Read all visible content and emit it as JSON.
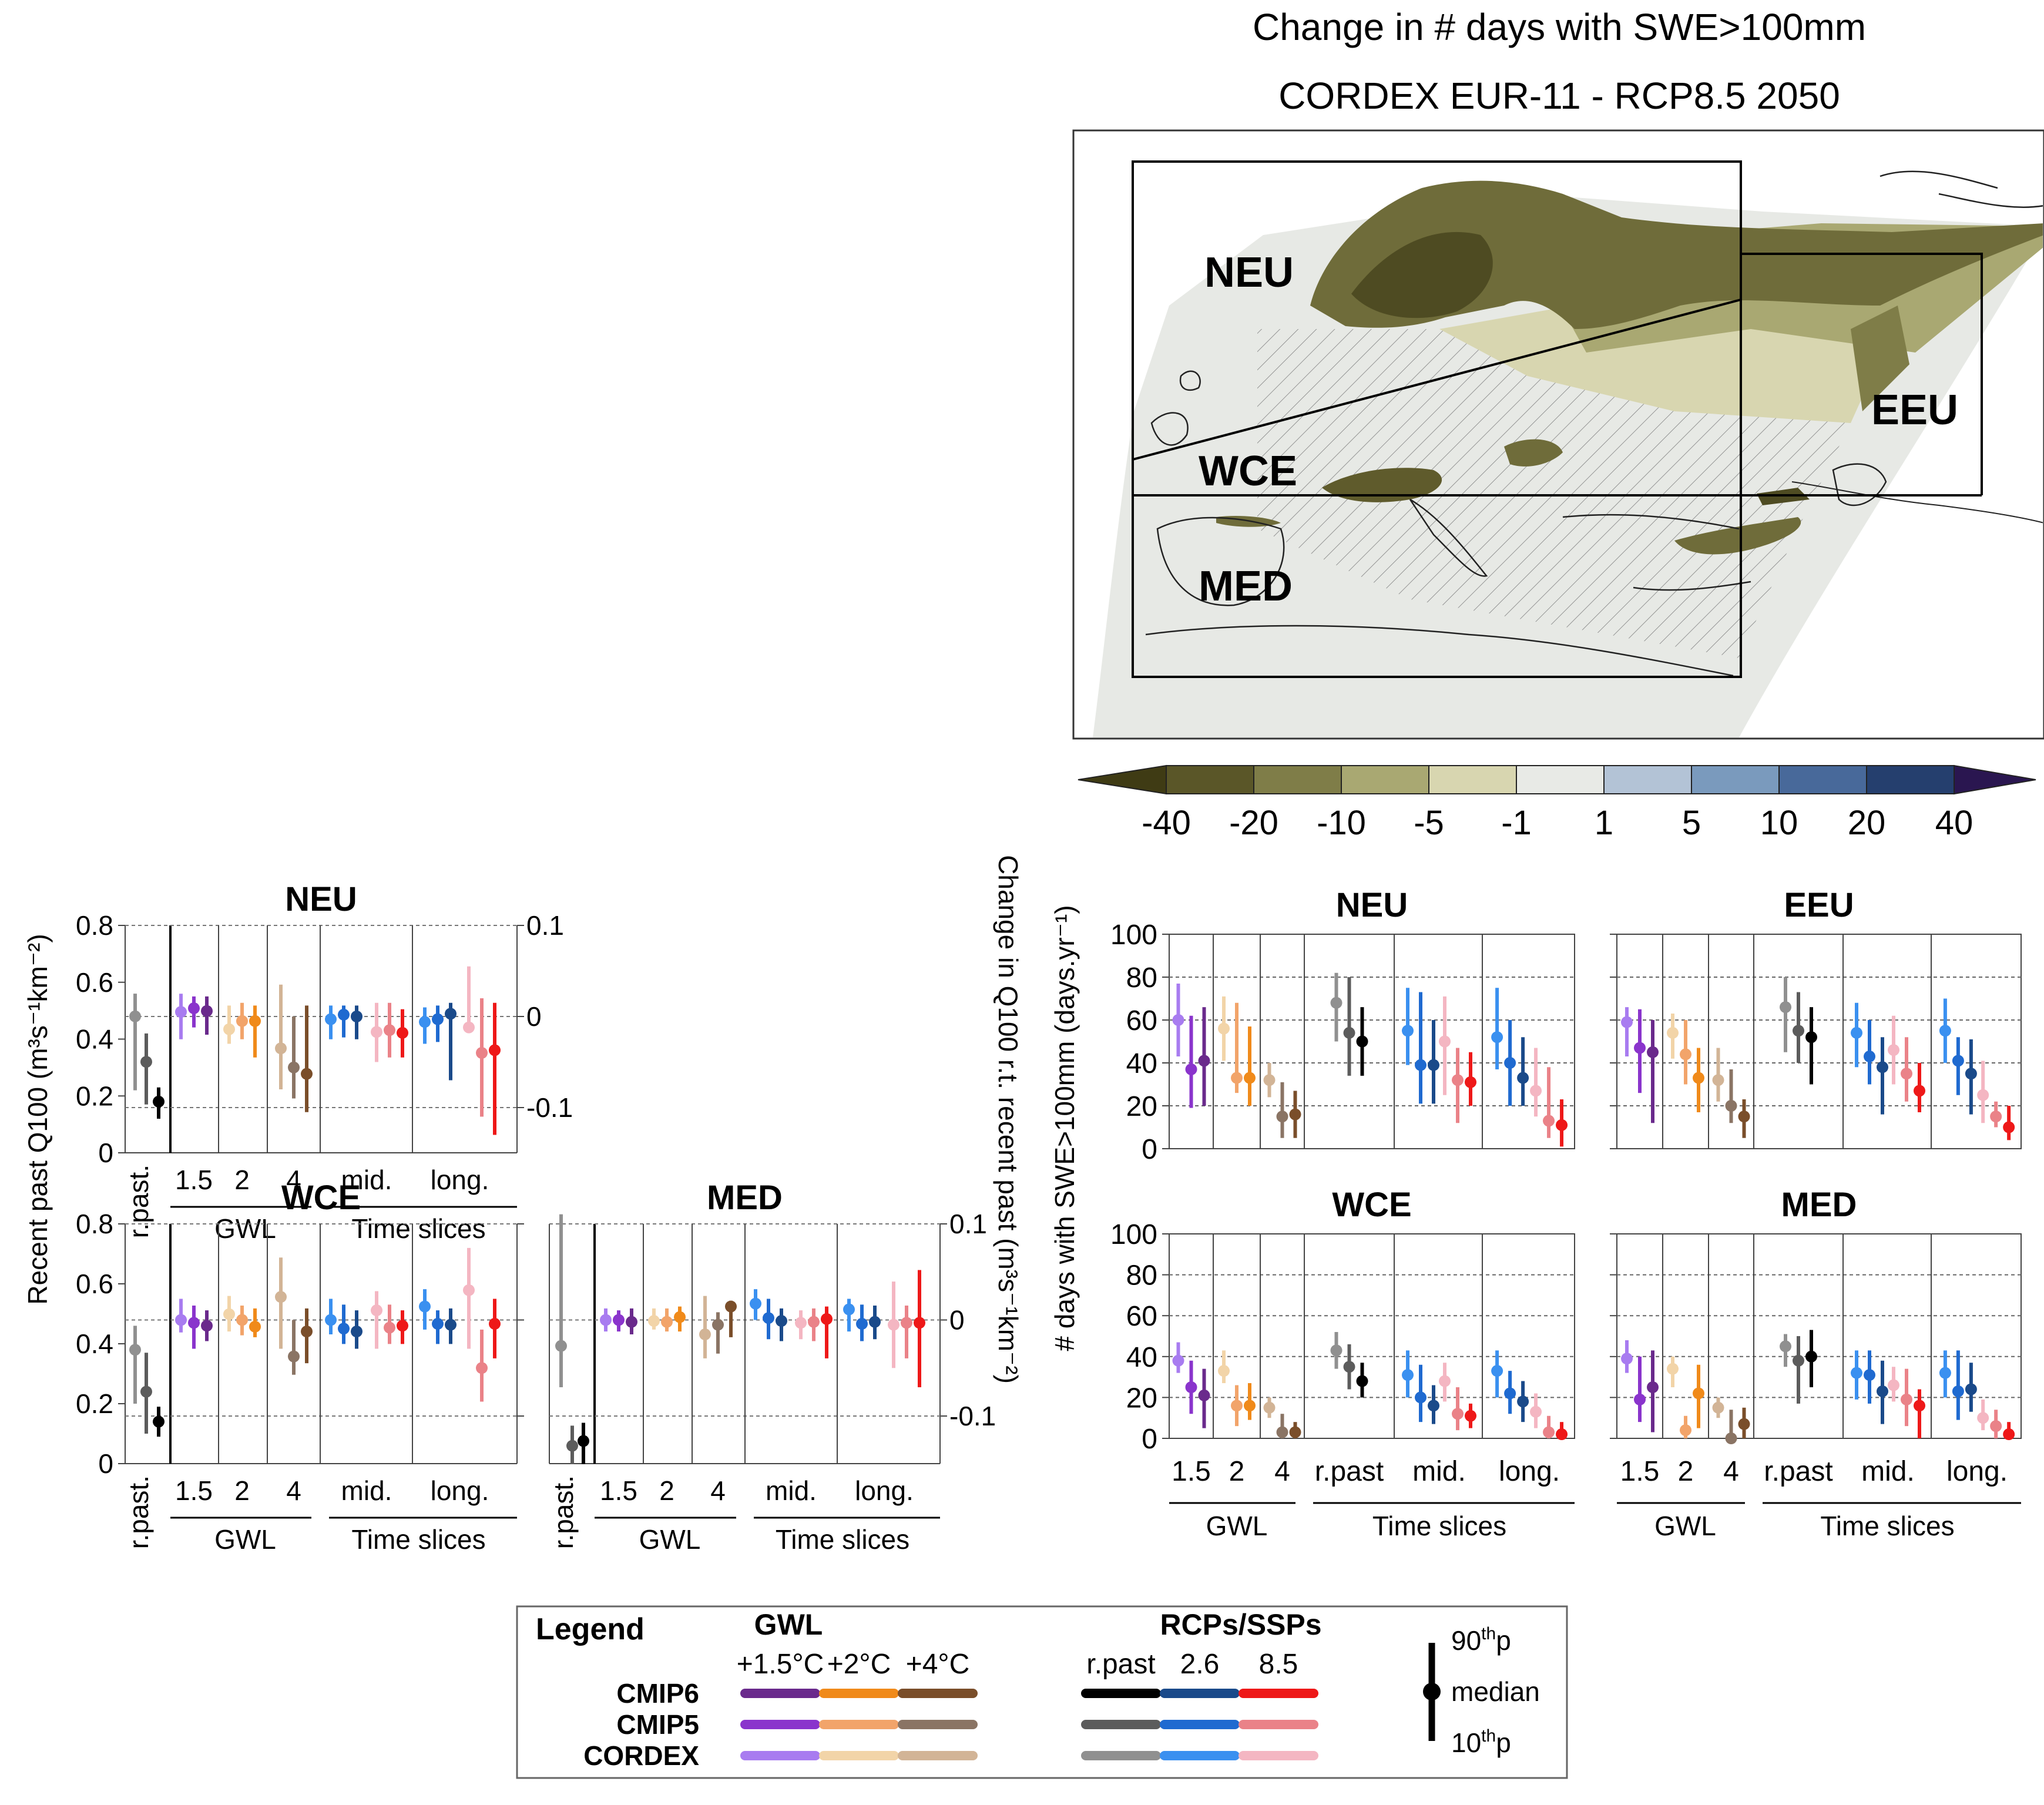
{
  "map": {
    "title_line1": "Change in # days with SWE>100mm",
    "title_line2": "CORDEX EUR-11 - RCP8.5 2050",
    "regions": [
      "NEU",
      "EEU",
      "WCE",
      "MED"
    ],
    "colorbar": {
      "ticks": [
        "-40",
        "-20",
        "-10",
        "-5",
        "-1",
        "1",
        "5",
        "10",
        "20",
        "40"
      ],
      "colors": [
        "#3f3b14",
        "#5a5628",
        "#7f7d48",
        "#a9a872",
        "#d8d6b0",
        "#e8eae6",
        "#b3c3d6",
        "#7a9abd",
        "#48699a",
        "#253f6e",
        "#141a4a",
        "#2a1650"
      ]
    }
  },
  "colors": {
    "gwl15": [
      "#a87cf0",
      "#8a34cc",
      "#6a2a8c"
    ],
    "gwl2": [
      "#f2d4a8",
      "#f2a46a",
      "#f08a1a"
    ],
    "gwl4": [
      "#d2b496",
      "#8a7464",
      "#7a4e2a"
    ],
    "rpast": [
      "#909090",
      "#5c5c5c",
      "#000000"
    ],
    "rcp26": [
      "#3a90f0",
      "#1f6ad0",
      "#1a4a8a"
    ],
    "rcp85": [
      "#f4b6c2",
      "#ea8288",
      "#ee1818"
    ]
  },
  "q100": {
    "left_axis_label": "Recent past Q100 (m³s⁻¹km⁻²)",
    "right_axis_label": "Change in Q100 r.t. recent past (m³s⁻¹km⁻²)",
    "left_ticks": [
      "0",
      "0.2",
      "0.4",
      "0.6",
      "0.8"
    ],
    "right_ticks": [
      "0.1",
      "0",
      "-0.1"
    ],
    "x_labels": {
      "rpast": "r.past.",
      "g15": "1.5",
      "g2": "2",
      "g4": "4",
      "mid": "mid.",
      "long": "long."
    },
    "group_labels": {
      "gwl": "GWL",
      "ts": "Time slices"
    }
  },
  "swe": {
    "axis_label": "# days with SWE>100mm (days.yr⁻¹)",
    "ticks": [
      "0",
      "20",
      "40",
      "60",
      "80",
      "100"
    ],
    "x_labels": {
      "g15": "1.5",
      "g2": "2",
      "g4": "4",
      "rpast": "r.past",
      "mid": "mid.",
      "long": "long."
    },
    "group_labels": {
      "gwl": "GWL",
      "ts": "Time slices"
    }
  },
  "chart_data": [
    {
      "type": "scatter",
      "title": "NEU",
      "description_of_units": "left axis: recent past Q100; right axis: change in Q100",
      "ylim": [
        0,
        0.8
      ],
      "y2lim": [
        -0.1,
        0.1
      ],
      "rpast": [
        [
          0.48,
          0.22,
          0.56
        ],
        [
          0.32,
          0.17,
          0.42
        ],
        [
          0.18,
          0.12,
          0.23
        ]
      ],
      "change": [
        [
          0.005,
          -0.025,
          0.025
        ],
        [
          0.009,
          -0.012,
          0.022
        ],
        [
          0.006,
          -0.02,
          0.022
        ],
        [
          -0.014,
          -0.03,
          0.012
        ],
        [
          -0.005,
          -0.025,
          0.015
        ],
        [
          -0.005,
          -0.045,
          0.012
        ],
        [
          -0.035,
          -0.08,
          0.035
        ],
        [
          -0.056,
          -0.09,
          0.0
        ],
        [
          -0.063,
          -0.105,
          0.012
        ],
        [
          -0.003,
          -0.025,
          0.012
        ],
        [
          0.002,
          -0.023,
          0.012
        ],
        [
          0.0,
          -0.025,
          0.012
        ],
        [
          -0.017,
          -0.05,
          0.015
        ],
        [
          -0.015,
          -0.045,
          0.015
        ],
        [
          -0.018,
          -0.045,
          0.008
        ],
        [
          -0.006,
          -0.03,
          0.01
        ],
        [
          -0.003,
          -0.028,
          0.012
        ],
        [
          0.003,
          -0.07,
          0.015
        ],
        [
          -0.012,
          -0.015,
          0.055
        ],
        [
          -0.04,
          -0.11,
          0.02
        ],
        [
          -0.037,
          -0.13,
          0.015
        ]
      ]
    },
    {
      "type": "scatter",
      "title": "WCE",
      "ylim": [
        0,
        0.8
      ],
      "y2lim": [
        -0.1,
        0.1
      ],
      "rpast": [
        [
          0.38,
          0.2,
          0.46
        ],
        [
          0.24,
          0.1,
          0.37
        ],
        [
          0.14,
          0.09,
          0.19
        ]
      ],
      "change": [
        [
          0.0,
          -0.013,
          0.022
        ],
        [
          -0.003,
          -0.03,
          0.015
        ],
        [
          -0.006,
          -0.022,
          0.01
        ],
        [
          0.006,
          -0.012,
          0.025
        ],
        [
          0.0,
          -0.016,
          0.015
        ],
        [
          -0.007,
          -0.018,
          0.012
        ],
        [
          0.024,
          -0.03,
          0.065
        ],
        [
          -0.038,
          -0.057,
          0.0
        ],
        [
          -0.012,
          -0.045,
          0.012
        ],
        [
          0.0,
          -0.015,
          0.022
        ],
        [
          -0.009,
          -0.025,
          0.016
        ],
        [
          -0.012,
          -0.03,
          0.01
        ],
        [
          0.01,
          -0.03,
          0.03
        ],
        [
          -0.008,
          -0.025,
          0.016
        ],
        [
          -0.006,
          -0.025,
          0.01
        ],
        [
          0.014,
          -0.01,
          0.032
        ],
        [
          -0.004,
          -0.025,
          0.01
        ],
        [
          -0.005,
          -0.025,
          0.012
        ],
        [
          0.031,
          -0.03,
          0.075
        ],
        [
          -0.05,
          -0.085,
          -0.01
        ],
        [
          -0.004,
          -0.04,
          0.022
        ]
      ]
    },
    {
      "type": "scatter",
      "title": "MED",
      "y2lim": [
        -0.1,
        0.1
      ],
      "rpast_change": [
        [
          -0.027,
          -0.07,
          0.11
        ],
        [
          -0.131,
          -0.15,
          -0.11
        ],
        [
          -0.126,
          -0.15,
          -0.107
        ]
      ],
      "change": [
        [
          0.0,
          -0.012,
          0.012
        ],
        [
          0.0,
          -0.012,
          0.01
        ],
        [
          -0.002,
          -0.015,
          0.012
        ],
        [
          -0.001,
          -0.01,
          0.012
        ],
        [
          -0.002,
          -0.012,
          0.012
        ],
        [
          0.003,
          -0.012,
          0.014
        ],
        [
          -0.015,
          -0.04,
          0.025
        ],
        [
          -0.005,
          -0.035,
          0.008
        ],
        [
          0.014,
          -0.018,
          0.02
        ],
        [
          0.017,
          0.0,
          0.032
        ],
        [
          0.002,
          -0.02,
          0.022
        ],
        [
          -0.001,
          -0.022,
          0.012
        ],
        [
          -0.003,
          -0.02,
          0.01
        ],
        [
          -0.002,
          -0.022,
          0.012
        ],
        [
          0.001,
          -0.04,
          0.014
        ],
        [
          0.011,
          -0.012,
          0.022
        ],
        [
          -0.004,
          -0.022,
          0.016
        ],
        [
          -0.002,
          -0.02,
          0.015
        ],
        [
          -0.005,
          -0.05,
          0.04
        ],
        [
          -0.003,
          -0.04,
          0.015
        ],
        [
          -0.003,
          -0.07,
          0.052
        ]
      ]
    },
    {
      "type": "scatter",
      "title": "NEU",
      "ylim": [
        0,
        100
      ],
      "points": [
        [
          60,
          43,
          77
        ],
        [
          37,
          19,
          62
        ],
        [
          41,
          20,
          66
        ],
        [
          56,
          41,
          71
        ],
        [
          33,
          26,
          68
        ],
        [
          33,
          20,
          57
        ],
        [
          32,
          24,
          40
        ],
        [
          15,
          5,
          31
        ],
        [
          16,
          5,
          27
        ],
        [
          68,
          50,
          82
        ],
        [
          54,
          34,
          80
        ],
        [
          50,
          34,
          66
        ],
        [
          55,
          39,
          75
        ],
        [
          39,
          21,
          73
        ],
        [
          39,
          21,
          60
        ],
        [
          50,
          25,
          71
        ],
        [
          32,
          12,
          47
        ],
        [
          31,
          20,
          45
        ],
        [
          52,
          37,
          75
        ],
        [
          40,
          20,
          60
        ],
        [
          33,
          20,
          52
        ],
        [
          27,
          15,
          47
        ],
        [
          13,
          5,
          38
        ],
        [
          11,
          1,
          23
        ]
      ]
    },
    {
      "type": "scatter",
      "title": "EEU",
      "ylim": [
        0,
        100
      ],
      "points": [
        [
          59,
          43,
          66
        ],
        [
          47,
          26,
          65
        ],
        [
          45,
          12,
          60
        ],
        [
          54,
          42,
          63
        ],
        [
          44,
          30,
          60
        ],
        [
          33,
          17,
          47
        ],
        [
          32,
          22,
          47
        ],
        [
          20,
          12,
          37
        ],
        [
          15,
          5,
          23
        ],
        [
          66,
          45,
          80
        ],
        [
          55,
          40,
          73
        ],
        [
          52,
          30,
          66
        ],
        [
          54,
          38,
          68
        ],
        [
          43,
          30,
          60
        ],
        [
          38,
          16,
          52
        ],
        [
          46,
          30,
          62
        ],
        [
          35,
          22,
          52
        ],
        [
          27,
          17,
          40
        ],
        [
          55,
          40,
          70
        ],
        [
          41,
          25,
          52
        ],
        [
          35,
          16,
          51
        ],
        [
          25,
          12,
          41
        ],
        [
          15,
          10,
          22
        ],
        [
          10,
          4,
          20
        ]
      ]
    },
    {
      "type": "scatter",
      "title": "WCE",
      "ylim": [
        0,
        100
      ],
      "points": [
        [
          38,
          32,
          47
        ],
        [
          25,
          12,
          38
        ],
        [
          21,
          5,
          34
        ],
        [
          33,
          27,
          43
        ],
        [
          16,
          6,
          26
        ],
        [
          16,
          9,
          27
        ],
        [
          15,
          10,
          20
        ],
        [
          3,
          0,
          12
        ],
        [
          3,
          0,
          8
        ],
        [
          43,
          34,
          52
        ],
        [
          35,
          24,
          46
        ],
        [
          28,
          20,
          37
        ],
        [
          31,
          20,
          43
        ],
        [
          20,
          8,
          36
        ],
        [
          16,
          7,
          26
        ],
        [
          28,
          18,
          37
        ],
        [
          12,
          4,
          25
        ],
        [
          11,
          5,
          17
        ],
        [
          33,
          20,
          43
        ],
        [
          22,
          12,
          33
        ],
        [
          18,
          8,
          28
        ],
        [
          13,
          5,
          22
        ],
        [
          3,
          0,
          11
        ],
        [
          2,
          0,
          8
        ]
      ]
    },
    {
      "type": "scatter",
      "title": "MED",
      "ylim": [
        0,
        100
      ],
      "points": [
        [
          39,
          32,
          48
        ],
        [
          19,
          8,
          40
        ],
        [
          25,
          3,
          43
        ],
        [
          34,
          25,
          40
        ],
        [
          4,
          0,
          11
        ],
        [
          22,
          5,
          36
        ],
        [
          15,
          10,
          20
        ],
        [
          0,
          0,
          14
        ],
        [
          7,
          0,
          15
        ],
        [
          45,
          35,
          51
        ],
        [
          38,
          17,
          50
        ],
        [
          40,
          25,
          53
        ],
        [
          32,
          19,
          43
        ],
        [
          31,
          17,
          43
        ],
        [
          23,
          7,
          38
        ],
        [
          26,
          18,
          35
        ],
        [
          19,
          6,
          34
        ],
        [
          16,
          0,
          24
        ],
        [
          32,
          20,
          43
        ],
        [
          23,
          9,
          43
        ],
        [
          24,
          13,
          37
        ],
        [
          10,
          4,
          19
        ],
        [
          6,
          0,
          14
        ],
        [
          2,
          0,
          8
        ]
      ]
    }
  ],
  "legend": {
    "title": "Legend",
    "gwl_title": "GWL",
    "rcp_title": "RCPs/SSPs",
    "cols": [
      "+1.5°C",
      "+2°C",
      "+4°C",
      "r.past",
      "2.6",
      "8.5"
    ],
    "rows": [
      "CMIP6",
      "CMIP5",
      "CORDEX"
    ],
    "whisker_top": "90",
    "whisker_top_sup": "th",
    "whisker_top_suffix": "p",
    "whisker_mid": "median",
    "whisker_bottom": "10",
    "whisker_bottom_sup": "th",
    "whisker_bottom_suffix": "p"
  }
}
